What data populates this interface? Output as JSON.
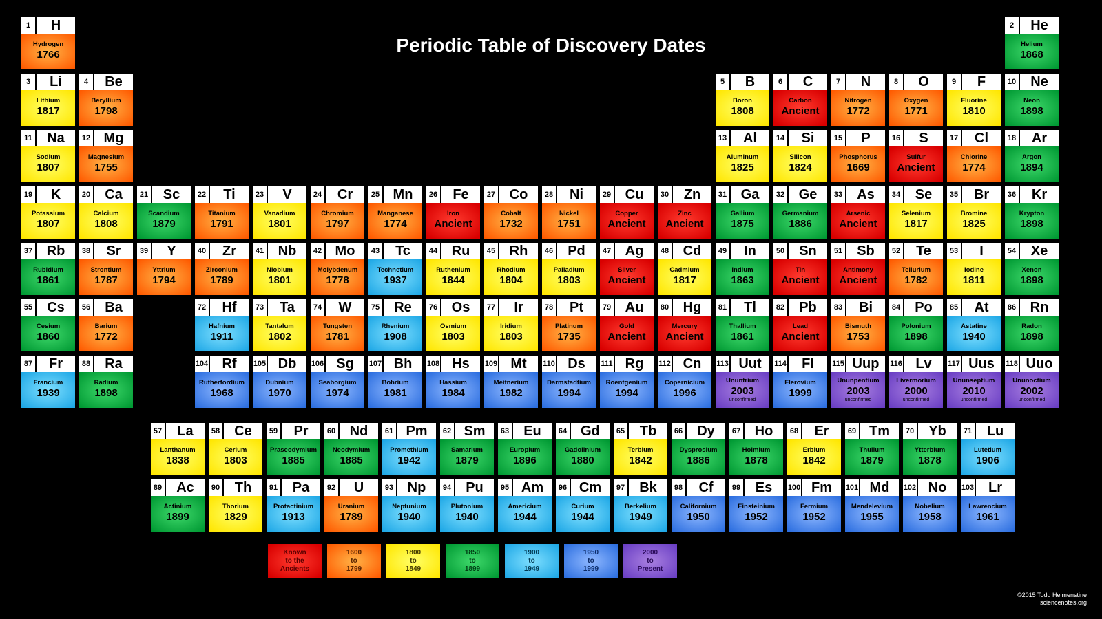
{
  "title": "Periodic Table of Discovery Dates",
  "credit": {
    "line1": "©2015 Todd Helmenstine",
    "line2": "sciencenotes.org"
  },
  "colors": {
    "ancient": "radial-gradient(ellipse at center, #ff3b2f 0%, #d90000 90%)",
    "1600_1799": "radial-gradient(ellipse at center, #ffb347 0%, #ff5a00 95%)",
    "1800_1849": "radial-gradient(ellipse at center, #ffff66 0%, #ffe600 95%)",
    "1850_1899": "radial-gradient(ellipse at center, #3fd96b 0%, #009933 95%)",
    "1900_1949": "radial-gradient(ellipse at center, #7fdfff 0%, #1fa8e6 95%)",
    "1950_1999": "radial-gradient(ellipse at center, #8fb8ff 0%, #2d6fe0 95%)",
    "2000_plus": "radial-gradient(ellipse at center, #a97fe0 0%, #6a3fc4 95%)"
  },
  "color_text": {
    "ancient": "#5a0000",
    "1600_1799": "#5a2400",
    "1800_1849": "#403800",
    "1850_1899": "#003d14",
    "1900_1949": "#003852",
    "1950_1999": "#0a2a66",
    "2000_plus": "#2a0a5a"
  },
  "legend": [
    {
      "key": "ancient",
      "l1": "Known",
      "l2": "to the",
      "l3": "Ancients"
    },
    {
      "key": "1600_1799",
      "l1": "1600",
      "l2": "to",
      "l3": "1799"
    },
    {
      "key": "1800_1849",
      "l1": "1800",
      "l2": "to",
      "l3": "1849"
    },
    {
      "key": "1850_1899",
      "l1": "1850",
      "l2": "to",
      "l3": "1899"
    },
    {
      "key": "1900_1949",
      "l1": "1900",
      "l2": "to",
      "l3": "1949"
    },
    {
      "key": "1950_1999",
      "l1": "1950",
      "l2": "to",
      "l3": "1999"
    },
    {
      "key": "2000_plus",
      "l1": "2000",
      "l2": "to",
      "l3": "Present"
    }
  ],
  "elements": [
    {
      "n": 1,
      "s": "H",
      "name": "Hydrogen",
      "year": "1766",
      "c": "1600_1799",
      "row": 1,
      "col": 1
    },
    {
      "n": 2,
      "s": "He",
      "name": "Helium",
      "year": "1868",
      "c": "1850_1899",
      "row": 1,
      "col": 18
    },
    {
      "n": 3,
      "s": "Li",
      "name": "Lithium",
      "year": "1817",
      "c": "1800_1849",
      "row": 2,
      "col": 1
    },
    {
      "n": 4,
      "s": "Be",
      "name": "Beryllium",
      "year": "1798",
      "c": "1600_1799",
      "row": 2,
      "col": 2
    },
    {
      "n": 5,
      "s": "B",
      "name": "Boron",
      "year": "1808",
      "c": "1800_1849",
      "row": 2,
      "col": 13
    },
    {
      "n": 6,
      "s": "C",
      "name": "Carbon",
      "year": "Ancient",
      "c": "ancient",
      "row": 2,
      "col": 14
    },
    {
      "n": 7,
      "s": "N",
      "name": "Nitrogen",
      "year": "1772",
      "c": "1600_1799",
      "row": 2,
      "col": 15
    },
    {
      "n": 8,
      "s": "O",
      "name": "Oxygen",
      "year": "1771",
      "c": "1600_1799",
      "row": 2,
      "col": 16
    },
    {
      "n": 9,
      "s": "F",
      "name": "Fluorine",
      "year": "1810",
      "c": "1800_1849",
      "row": 2,
      "col": 17
    },
    {
      "n": 10,
      "s": "Ne",
      "name": "Neon",
      "year": "1898",
      "c": "1850_1899",
      "row": 2,
      "col": 18
    },
    {
      "n": 11,
      "s": "Na",
      "name": "Sodium",
      "year": "1807",
      "c": "1800_1849",
      "row": 3,
      "col": 1
    },
    {
      "n": 12,
      "s": "Mg",
      "name": "Magnesium",
      "year": "1755",
      "c": "1600_1799",
      "row": 3,
      "col": 2
    },
    {
      "n": 13,
      "s": "Al",
      "name": "Aluminum",
      "year": "1825",
      "c": "1800_1849",
      "row": 3,
      "col": 13
    },
    {
      "n": 14,
      "s": "Si",
      "name": "Silicon",
      "year": "1824",
      "c": "1800_1849",
      "row": 3,
      "col": 14
    },
    {
      "n": 15,
      "s": "P",
      "name": "Phosphorus",
      "year": "1669",
      "c": "1600_1799",
      "row": 3,
      "col": 15
    },
    {
      "n": 16,
      "s": "S",
      "name": "Sulfur",
      "year": "Ancient",
      "c": "ancient",
      "row": 3,
      "col": 16
    },
    {
      "n": 17,
      "s": "Cl",
      "name": "Chlorine",
      "year": "1774",
      "c": "1600_1799",
      "row": 3,
      "col": 17
    },
    {
      "n": 18,
      "s": "Ar",
      "name": "Argon",
      "year": "1894",
      "c": "1850_1899",
      "row": 3,
      "col": 18
    },
    {
      "n": 19,
      "s": "K",
      "name": "Potassium",
      "year": "1807",
      "c": "1800_1849",
      "row": 4,
      "col": 1
    },
    {
      "n": 20,
      "s": "Ca",
      "name": "Calcium",
      "year": "1808",
      "c": "1800_1849",
      "row": 4,
      "col": 2
    },
    {
      "n": 21,
      "s": "Sc",
      "name": "Scandium",
      "year": "1879",
      "c": "1850_1899",
      "row": 4,
      "col": 3
    },
    {
      "n": 22,
      "s": "Ti",
      "name": "Titanium",
      "year": "1791",
      "c": "1600_1799",
      "row": 4,
      "col": 4
    },
    {
      "n": 23,
      "s": "V",
      "name": "Vanadium",
      "year": "1801",
      "c": "1800_1849",
      "row": 4,
      "col": 5
    },
    {
      "n": 24,
      "s": "Cr",
      "name": "Chromium",
      "year": "1797",
      "c": "1600_1799",
      "row": 4,
      "col": 6
    },
    {
      "n": 25,
      "s": "Mn",
      "name": "Manganese",
      "year": "1774",
      "c": "1600_1799",
      "row": 4,
      "col": 7
    },
    {
      "n": 26,
      "s": "Fe",
      "name": "Iron",
      "year": "Ancient",
      "c": "ancient",
      "row": 4,
      "col": 8
    },
    {
      "n": 27,
      "s": "Co",
      "name": "Cobalt",
      "year": "1732",
      "c": "1600_1799",
      "row": 4,
      "col": 9
    },
    {
      "n": 28,
      "s": "Ni",
      "name": "Nickel",
      "year": "1751",
      "c": "1600_1799",
      "row": 4,
      "col": 10
    },
    {
      "n": 29,
      "s": "Cu",
      "name": "Copper",
      "year": "Ancient",
      "c": "ancient",
      "row": 4,
      "col": 11
    },
    {
      "n": 30,
      "s": "Zn",
      "name": "Zinc",
      "year": "Ancient",
      "c": "ancient",
      "row": 4,
      "col": 12
    },
    {
      "n": 31,
      "s": "Ga",
      "name": "Gallium",
      "year": "1875",
      "c": "1850_1899",
      "row": 4,
      "col": 13
    },
    {
      "n": 32,
      "s": "Ge",
      "name": "Germanium",
      "year": "1886",
      "c": "1850_1899",
      "row": 4,
      "col": 14
    },
    {
      "n": 33,
      "s": "As",
      "name": "Arsenic",
      "year": "Ancient",
      "c": "ancient",
      "row": 4,
      "col": 15
    },
    {
      "n": 34,
      "s": "Se",
      "name": "Selenium",
      "year": "1817",
      "c": "1800_1849",
      "row": 4,
      "col": 16
    },
    {
      "n": 35,
      "s": "Br",
      "name": "Bromine",
      "year": "1825",
      "c": "1800_1849",
      "row": 4,
      "col": 17
    },
    {
      "n": 36,
      "s": "Kr",
      "name": "Krypton",
      "year": "1898",
      "c": "1850_1899",
      "row": 4,
      "col": 18
    },
    {
      "n": 37,
      "s": "Rb",
      "name": "Rubidium",
      "year": "1861",
      "c": "1850_1899",
      "row": 5,
      "col": 1
    },
    {
      "n": 38,
      "s": "Sr",
      "name": "Strontium",
      "year": "1787",
      "c": "1600_1799",
      "row": 5,
      "col": 2
    },
    {
      "n": 39,
      "s": "Y",
      "name": "Yttrium",
      "year": "1794",
      "c": "1600_1799",
      "row": 5,
      "col": 3
    },
    {
      "n": 40,
      "s": "Zr",
      "name": "Zirconium",
      "year": "1789",
      "c": "1600_1799",
      "row": 5,
      "col": 4
    },
    {
      "n": 41,
      "s": "Nb",
      "name": "Niobium",
      "year": "1801",
      "c": "1800_1849",
      "row": 5,
      "col": 5
    },
    {
      "n": 42,
      "s": "Mo",
      "name": "Molybdenum",
      "year": "1778",
      "c": "1600_1799",
      "row": 5,
      "col": 6
    },
    {
      "n": 43,
      "s": "Tc",
      "name": "Technetium",
      "year": "1937",
      "c": "1900_1949",
      "row": 5,
      "col": 7
    },
    {
      "n": 44,
      "s": "Ru",
      "name": "Ruthenium",
      "year": "1844",
      "c": "1800_1849",
      "row": 5,
      "col": 8
    },
    {
      "n": 45,
      "s": "Rh",
      "name": "Rhodium",
      "year": "1804",
      "c": "1800_1849",
      "row": 5,
      "col": 9
    },
    {
      "n": 46,
      "s": "Pd",
      "name": "Palladium",
      "year": "1803",
      "c": "1800_1849",
      "row": 5,
      "col": 10
    },
    {
      "n": 47,
      "s": "Ag",
      "name": "Silver",
      "year": "Ancient",
      "c": "ancient",
      "row": 5,
      "col": 11
    },
    {
      "n": 48,
      "s": "Cd",
      "name": "Cadmium",
      "year": "1817",
      "c": "1800_1849",
      "row": 5,
      "col": 12
    },
    {
      "n": 49,
      "s": "In",
      "name": "Indium",
      "year": "1863",
      "c": "1850_1899",
      "row": 5,
      "col": 13
    },
    {
      "n": 50,
      "s": "Sn",
      "name": "Tin",
      "year": "Ancient",
      "c": "ancient",
      "row": 5,
      "col": 14
    },
    {
      "n": 51,
      "s": "Sb",
      "name": "Antimony",
      "year": "Ancient",
      "c": "ancient",
      "row": 5,
      "col": 15
    },
    {
      "n": 52,
      "s": "Te",
      "name": "Tellurium",
      "year": "1782",
      "c": "1600_1799",
      "row": 5,
      "col": 16
    },
    {
      "n": 53,
      "s": "I",
      "name": "Iodine",
      "year": "1811",
      "c": "1800_1849",
      "row": 5,
      "col": 17
    },
    {
      "n": 54,
      "s": "Xe",
      "name": "Xenon",
      "year": "1898",
      "c": "1850_1899",
      "row": 5,
      "col": 18
    },
    {
      "n": 55,
      "s": "Cs",
      "name": "Cesium",
      "year": "1860",
      "c": "1850_1899",
      "row": 6,
      "col": 1
    },
    {
      "n": 56,
      "s": "Ba",
      "name": "Barium",
      "year": "1772",
      "c": "1600_1799",
      "row": 6,
      "col": 2
    },
    {
      "n": 72,
      "s": "Hf",
      "name": "Hafnium",
      "year": "1911",
      "c": "1900_1949",
      "row": 6,
      "col": 4
    },
    {
      "n": 73,
      "s": "Ta",
      "name": "Tantalum",
      "year": "1802",
      "c": "1800_1849",
      "row": 6,
      "col": 5
    },
    {
      "n": 74,
      "s": "W",
      "name": "Tungsten",
      "year": "1781",
      "c": "1600_1799",
      "row": 6,
      "col": 6
    },
    {
      "n": 75,
      "s": "Re",
      "name": "Rhenium",
      "year": "1908",
      "c": "1900_1949",
      "row": 6,
      "col": 7
    },
    {
      "n": 76,
      "s": "Os",
      "name": "Osmium",
      "year": "1803",
      "c": "1800_1849",
      "row": 6,
      "col": 8
    },
    {
      "n": 77,
      "s": "Ir",
      "name": "Iridium",
      "year": "1803",
      "c": "1800_1849",
      "row": 6,
      "col": 9
    },
    {
      "n": 78,
      "s": "Pt",
      "name": "Platinum",
      "year": "1735",
      "c": "1600_1799",
      "row": 6,
      "col": 10
    },
    {
      "n": 79,
      "s": "Au",
      "name": "Gold",
      "year": "Ancient",
      "c": "ancient",
      "row": 6,
      "col": 11
    },
    {
      "n": 80,
      "s": "Hg",
      "name": "Mercury",
      "year": "Ancient",
      "c": "ancient",
      "row": 6,
      "col": 12
    },
    {
      "n": 81,
      "s": "Tl",
      "name": "Thallium",
      "year": "1861",
      "c": "1850_1899",
      "row": 6,
      "col": 13
    },
    {
      "n": 82,
      "s": "Pb",
      "name": "Lead",
      "year": "Ancient",
      "c": "ancient",
      "row": 6,
      "col": 14
    },
    {
      "n": 83,
      "s": "Bi",
      "name": "Bismuth",
      "year": "1753",
      "c": "1600_1799",
      "row": 6,
      "col": 15
    },
    {
      "n": 84,
      "s": "Po",
      "name": "Polonium",
      "year": "1898",
      "c": "1850_1899",
      "row": 6,
      "col": 16
    },
    {
      "n": 85,
      "s": "At",
      "name": "Astatine",
      "year": "1940",
      "c": "1900_1949",
      "row": 6,
      "col": 17
    },
    {
      "n": 86,
      "s": "Rn",
      "name": "Radon",
      "year": "1898",
      "c": "1850_1899",
      "row": 6,
      "col": 18
    },
    {
      "n": 87,
      "s": "Fr",
      "name": "Francium",
      "year": "1939",
      "c": "1900_1949",
      "row": 7,
      "col": 1
    },
    {
      "n": 88,
      "s": "Ra",
      "name": "Radium",
      "year": "1898",
      "c": "1850_1899",
      "row": 7,
      "col": 2
    },
    {
      "n": 104,
      "s": "Rf",
      "name": "Rutherfordium",
      "year": "1968",
      "c": "1950_1999",
      "row": 7,
      "col": 4
    },
    {
      "n": 105,
      "s": "Db",
      "name": "Dubnium",
      "year": "1970",
      "c": "1950_1999",
      "row": 7,
      "col": 5
    },
    {
      "n": 106,
      "s": "Sg",
      "name": "Seaborgium",
      "year": "1974",
      "c": "1950_1999",
      "row": 7,
      "col": 6
    },
    {
      "n": 107,
      "s": "Bh",
      "name": "Bohrium",
      "year": "1981",
      "c": "1950_1999",
      "row": 7,
      "col": 7
    },
    {
      "n": 108,
      "s": "Hs",
      "name": "Hassium",
      "year": "1984",
      "c": "1950_1999",
      "row": 7,
      "col": 8
    },
    {
      "n": 109,
      "s": "Mt",
      "name": "Meitnerium",
      "year": "1982",
      "c": "1950_1999",
      "row": 7,
      "col": 9
    },
    {
      "n": 110,
      "s": "Ds",
      "name": "Darmstadtium",
      "year": "1994",
      "c": "1950_1999",
      "row": 7,
      "col": 10
    },
    {
      "n": 111,
      "s": "Rg",
      "name": "Roentgenium",
      "year": "1994",
      "c": "1950_1999",
      "row": 7,
      "col": 11
    },
    {
      "n": 112,
      "s": "Cn",
      "name": "Copernicium",
      "year": "1996",
      "c": "1950_1999",
      "row": 7,
      "col": 12
    },
    {
      "n": 113,
      "s": "Uut",
      "name": "Ununtrium",
      "year": "2003",
      "c": "2000_plus",
      "row": 7,
      "col": 13,
      "note": "unconfirmed"
    },
    {
      "n": 114,
      "s": "Fl",
      "name": "Flerovium",
      "year": "1999",
      "c": "1950_1999",
      "row": 7,
      "col": 14
    },
    {
      "n": 115,
      "s": "Uup",
      "name": "Ununpentium",
      "year": "2003",
      "c": "2000_plus",
      "row": 7,
      "col": 15,
      "note": "unconfirmed"
    },
    {
      "n": 116,
      "s": "Lv",
      "name": "Livermorium",
      "year": "2000",
      "c": "2000_plus",
      "row": 7,
      "col": 16,
      "note": "unconfirmed"
    },
    {
      "n": 117,
      "s": "Uus",
      "name": "Ununseptium",
      "year": "2010",
      "c": "2000_plus",
      "row": 7,
      "col": 17,
      "note": "unconfirmed"
    },
    {
      "n": 118,
      "s": "Uuo",
      "name": "Ununoctium",
      "year": "2002",
      "c": "2000_plus",
      "row": 7,
      "col": 18,
      "note": "unconfirmed"
    }
  ],
  "fblock": [
    {
      "n": 57,
      "s": "La",
      "name": "Lanthanum",
      "year": "1838",
      "c": "1800_1849",
      "row": 1,
      "col": 1
    },
    {
      "n": 58,
      "s": "Ce",
      "name": "Cerium",
      "year": "1803",
      "c": "1800_1849",
      "row": 1,
      "col": 2
    },
    {
      "n": 59,
      "s": "Pr",
      "name": "Praseodymium",
      "year": "1885",
      "c": "1850_1899",
      "row": 1,
      "col": 3
    },
    {
      "n": 60,
      "s": "Nd",
      "name": "Neodymium",
      "year": "1885",
      "c": "1850_1899",
      "row": 1,
      "col": 4
    },
    {
      "n": 61,
      "s": "Pm",
      "name": "Promethium",
      "year": "1942",
      "c": "1900_1949",
      "row": 1,
      "col": 5
    },
    {
      "n": 62,
      "s": "Sm",
      "name": "Samarium",
      "year": "1879",
      "c": "1850_1899",
      "row": 1,
      "col": 6
    },
    {
      "n": 63,
      "s": "Eu",
      "name": "Europium",
      "year": "1896",
      "c": "1850_1899",
      "row": 1,
      "col": 7
    },
    {
      "n": 64,
      "s": "Gd",
      "name": "Gadolinium",
      "year": "1880",
      "c": "1850_1899",
      "row": 1,
      "col": 8
    },
    {
      "n": 65,
      "s": "Tb",
      "name": "Terbium",
      "year": "1842",
      "c": "1800_1849",
      "row": 1,
      "col": 9
    },
    {
      "n": 66,
      "s": "Dy",
      "name": "Dysprosium",
      "year": "1886",
      "c": "1850_1899",
      "row": 1,
      "col": 10
    },
    {
      "n": 67,
      "s": "Ho",
      "name": "Holmium",
      "year": "1878",
      "c": "1850_1899",
      "row": 1,
      "col": 11
    },
    {
      "n": 68,
      "s": "Er",
      "name": "Erbium",
      "year": "1842",
      "c": "1800_1849",
      "row": 1,
      "col": 12
    },
    {
      "n": 69,
      "s": "Tm",
      "name": "Thulium",
      "year": "1879",
      "c": "1850_1899",
      "row": 1,
      "col": 13
    },
    {
      "n": 70,
      "s": "Yb",
      "name": "Ytterbium",
      "year": "1878",
      "c": "1850_1899",
      "row": 1,
      "col": 14
    },
    {
      "n": 71,
      "s": "Lu",
      "name": "Lutetium",
      "year": "1906",
      "c": "1900_1949",
      "row": 1,
      "col": 15
    },
    {
      "n": 89,
      "s": "Ac",
      "name": "Actinium",
      "year": "1899",
      "c": "1850_1899",
      "row": 2,
      "col": 1
    },
    {
      "n": 90,
      "s": "Th",
      "name": "Thorium",
      "year": "1829",
      "c": "1800_1849",
      "row": 2,
      "col": 2
    },
    {
      "n": 91,
      "s": "Pa",
      "name": "Protactinium",
      "year": "1913",
      "c": "1900_1949",
      "row": 2,
      "col": 3
    },
    {
      "n": 92,
      "s": "U",
      "name": "Uranium",
      "year": "1789",
      "c": "1600_1799",
      "row": 2,
      "col": 4
    },
    {
      "n": 93,
      "s": "Np",
      "name": "Neptunium",
      "year": "1940",
      "c": "1900_1949",
      "row": 2,
      "col": 5
    },
    {
      "n": 94,
      "s": "Pu",
      "name": "Plutonium",
      "year": "1940",
      "c": "1900_1949",
      "row": 2,
      "col": 6
    },
    {
      "n": 95,
      "s": "Am",
      "name": "Americium",
      "year": "1944",
      "c": "1900_1949",
      "row": 2,
      "col": 7
    },
    {
      "n": 96,
      "s": "Cm",
      "name": "Curium",
      "year": "1944",
      "c": "1900_1949",
      "row": 2,
      "col": 8
    },
    {
      "n": 97,
      "s": "Bk",
      "name": "Berkelium",
      "year": "1949",
      "c": "1900_1949",
      "row": 2,
      "col": 9
    },
    {
      "n": 98,
      "s": "Cf",
      "name": "Californium",
      "year": "1950",
      "c": "1950_1999",
      "row": 2,
      "col": 10
    },
    {
      "n": 99,
      "s": "Es",
      "name": "Einsteinium",
      "year": "1952",
      "c": "1950_1999",
      "row": 2,
      "col": 11
    },
    {
      "n": 100,
      "s": "Fm",
      "name": "Fermium",
      "year": "1952",
      "c": "1950_1999",
      "row": 2,
      "col": 12
    },
    {
      "n": 101,
      "s": "Md",
      "name": "Mendelevium",
      "year": "1955",
      "c": "1950_1999",
      "row": 2,
      "col": 13
    },
    {
      "n": 102,
      "s": "No",
      "name": "Nobelium",
      "year": "1958",
      "c": "1950_1999",
      "row": 2,
      "col": 14
    },
    {
      "n": 103,
      "s": "Lr",
      "name": "Lawrencium",
      "year": "1961",
      "c": "1950_1999",
      "row": 2,
      "col": 15
    }
  ]
}
